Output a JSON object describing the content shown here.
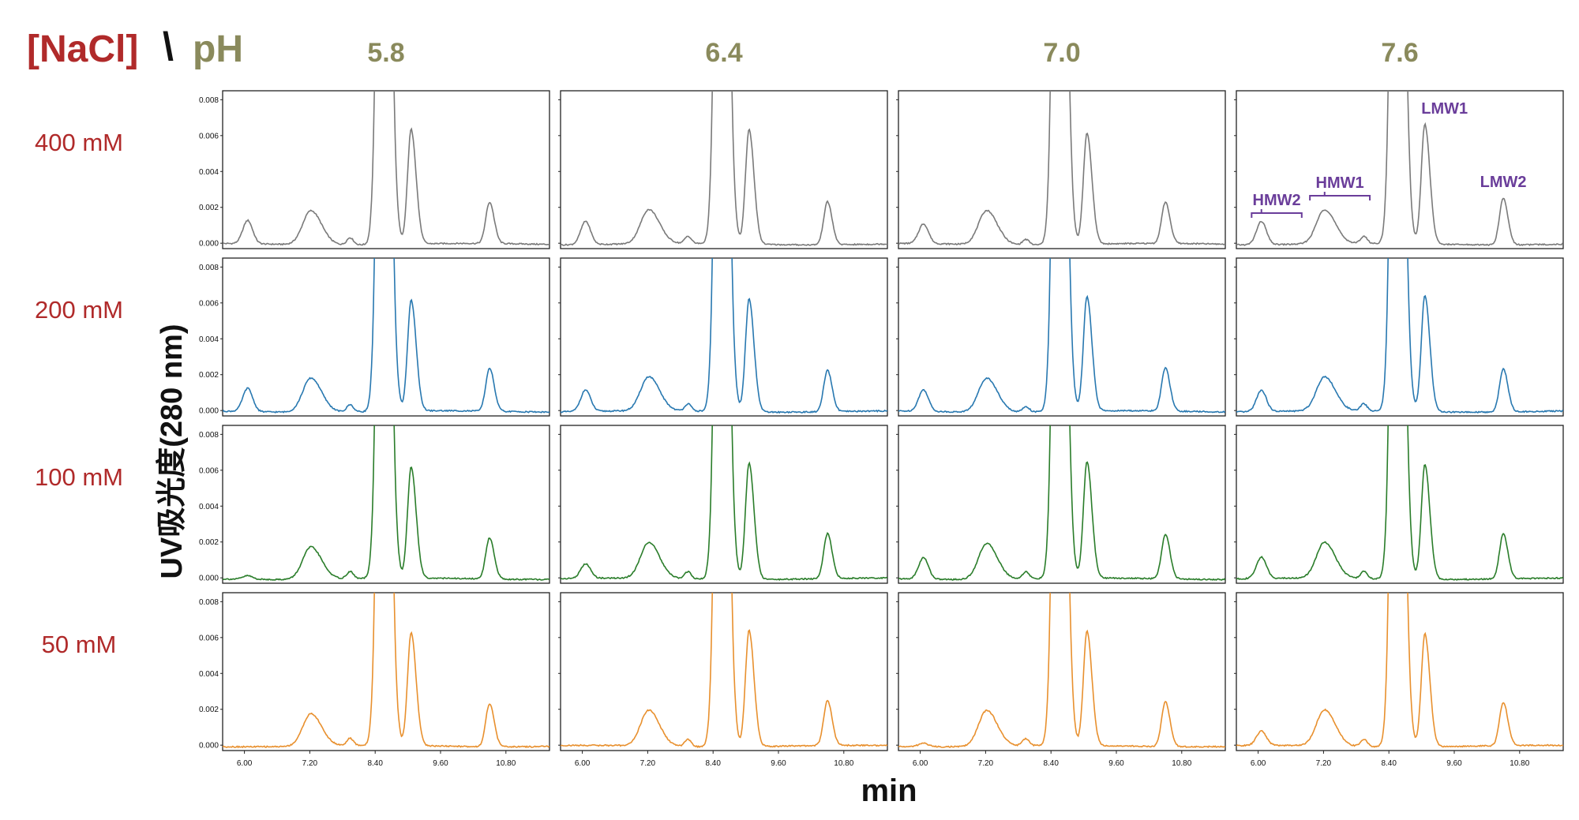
{
  "header": {
    "nacl_label": "[NaCl]",
    "separator": "\\",
    "ph_label": "pH"
  },
  "colors": {
    "nacl": "#b02a2a",
    "ph": "#8a8a5c",
    "annotation": "#6a3d9a",
    "row_colors": [
      "#7a7a7a",
      "#2878b0",
      "#2a7d2a",
      "#e8902e"
    ]
  },
  "ylabel": "UV吸光度(280 nm)",
  "xlabel": "min",
  "chart_data": {
    "type": "line",
    "layout": "grid-4x4",
    "columns": [
      "5.8",
      "6.4",
      "7.0",
      "7.6"
    ],
    "rows": [
      "400 mM",
      "200 mM",
      "100 mM",
      "50 mM"
    ],
    "xlim": [
      5.6,
      11.6
    ],
    "ylim": [
      -0.0003,
      0.0085
    ],
    "x_ticks": [
      "6.00",
      "7.20",
      "8.40",
      "9.60",
      "10.80"
    ],
    "x_tick_values": [
      6.0,
      7.2,
      8.4,
      9.6,
      10.8
    ],
    "y_ticks": [
      "0.000",
      "0.002",
      "0.004",
      "0.006",
      "0.008"
    ],
    "y_tick_values": [
      0,
      0.002,
      0.004,
      0.006,
      0.008
    ],
    "peak_centers": {
      "HMW2": 6.06,
      "HMW1": 7.22,
      "shoulder": 7.94,
      "main": 8.55,
      "LMW1": 9.06,
      "LMW2": 10.5
    },
    "peak_heights": [
      [
        {
          "HMW2": 0.0013,
          "HMW1": 0.0019,
          "shoulder": 0.0004,
          "LMW1": 0.0064,
          "LMW2": 0.0023
        },
        {
          "HMW2": 0.0013,
          "HMW1": 0.0019,
          "shoulder": 0.0004,
          "LMW1": 0.0064,
          "LMW2": 0.0024
        },
        {
          "HMW2": 0.0011,
          "HMW1": 0.0019,
          "shoulder": 0.0003,
          "LMW1": 0.0062,
          "LMW2": 0.0023
        },
        {
          "HMW2": 0.0013,
          "HMW1": 0.0019,
          "shoulder": 0.0004,
          "LMW1": 0.0067,
          "LMW2": 0.0026
        }
      ],
      [
        {
          "HMW2": 0.0013,
          "HMW1": 0.0019,
          "shoulder": 0.0004,
          "LMW1": 0.0062,
          "LMW2": 0.0024
        },
        {
          "HMW2": 0.0012,
          "HMW1": 0.0019,
          "shoulder": 0.0004,
          "LMW1": 0.0063,
          "LMW2": 0.0023
        },
        {
          "HMW2": 0.0012,
          "HMW1": 0.0019,
          "shoulder": 0.0003,
          "LMW1": 0.0064,
          "LMW2": 0.0024
        },
        {
          "HMW2": 0.0012,
          "HMW1": 0.0019,
          "shoulder": 0.0004,
          "LMW1": 0.0065,
          "LMW2": 0.0024
        }
      ],
      [
        {
          "HMW2": 0.0002,
          "HMW1": 0.0018,
          "shoulder": 0.0004,
          "LMW1": 0.0062,
          "LMW2": 0.0023
        },
        {
          "HMW2": 0.0008,
          "HMW1": 0.002,
          "shoulder": 0.0004,
          "LMW1": 0.0065,
          "LMW2": 0.0025
        },
        {
          "HMW2": 0.0012,
          "HMW1": 0.002,
          "shoulder": 0.0004,
          "LMW1": 0.0065,
          "LMW2": 0.0025
        },
        {
          "HMW2": 0.0012,
          "HMW1": 0.002,
          "shoulder": 0.0004,
          "LMW1": 0.0064,
          "LMW2": 0.0025
        }
      ],
      [
        {
          "HMW2": 0.0,
          "HMW1": 0.0018,
          "shoulder": 0.0004,
          "LMW1": 0.0063,
          "LMW2": 0.0024
        },
        {
          "HMW2": 0.0,
          "HMW1": 0.002,
          "shoulder": 0.0004,
          "LMW1": 0.0065,
          "LMW2": 0.0025
        },
        {
          "HMW2": 0.0002,
          "HMW1": 0.002,
          "shoulder": 0.0004,
          "LMW1": 0.0064,
          "LMW2": 0.0025
        },
        {
          "HMW2": 0.0008,
          "HMW1": 0.002,
          "shoulder": 0.0004,
          "LMW1": 0.0063,
          "LMW2": 0.0024
        }
      ]
    ],
    "main_peak": "off-scale (exceeds 0.008)",
    "annotations": [
      {
        "text": "HMW2",
        "x": 6.06,
        "range": [
          5.88,
          6.8
        ]
      },
      {
        "text": "HMW1",
        "x": 7.22,
        "range": [
          6.95,
          8.05
        ]
      },
      {
        "text": "LMW1",
        "x": 9.06
      },
      {
        "text": "LMW2",
        "x": 10.5
      }
    ]
  }
}
